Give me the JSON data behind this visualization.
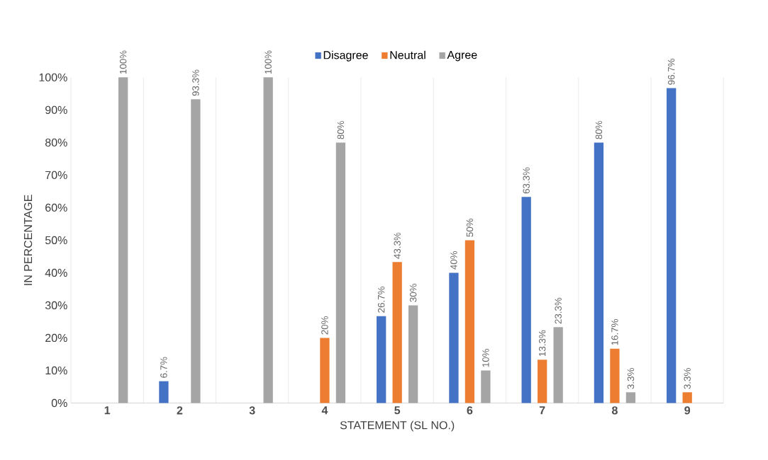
{
  "chart_data": {
    "type": "bar",
    "xlabel": "STATEMENT (SL NO.)",
    "ylabel": "IN PERCENTAGE",
    "categories": [
      "1",
      "2",
      "3",
      "4",
      "5",
      "6",
      "7",
      "8",
      "9"
    ],
    "series": [
      {
        "name": "Disagree",
        "color": "#4472c4",
        "values": [
          null,
          6.7,
          null,
          null,
          26.7,
          40,
          63.3,
          80,
          96.7
        ],
        "value_labels": [
          null,
          "6.7%",
          null,
          null,
          "26.7%",
          "40%",
          "63.3%",
          "80%",
          "96.7%"
        ]
      },
      {
        "name": "Neutral",
        "color": "#ed7d31",
        "values": [
          null,
          null,
          null,
          20,
          43.3,
          50,
          13.3,
          16.7,
          3.3
        ],
        "value_labels": [
          null,
          null,
          null,
          "20%",
          "43.3%",
          "50%",
          "13.3%",
          "16.7%",
          "3.3%"
        ]
      },
      {
        "name": "Agree",
        "color": "#a5a5a5",
        "values": [
          100,
          93.3,
          100,
          80,
          30,
          10,
          23.3,
          3.3,
          null
        ],
        "value_labels": [
          "100%",
          "93.3%",
          "100%",
          "80%",
          "30%",
          "10%",
          "23.3%",
          "3.3%",
          null
        ]
      }
    ],
    "ylim": [
      0,
      100
    ],
    "yticks": [
      {
        "value": 0,
        "label": "0%"
      },
      {
        "value": 10,
        "label": "10%"
      },
      {
        "value": 20,
        "label": "20%"
      },
      {
        "value": 30,
        "label": "30%"
      },
      {
        "value": 40,
        "label": "40%"
      },
      {
        "value": 50,
        "label": "50%"
      },
      {
        "value": 60,
        "label": "60%"
      },
      {
        "value": 70,
        "label": "70%"
      },
      {
        "value": 80,
        "label": "80%"
      },
      {
        "value": 90,
        "label": "90%"
      },
      {
        "value": 100,
        "label": "100%"
      }
    ],
    "grid": "x",
    "legend": "top"
  }
}
